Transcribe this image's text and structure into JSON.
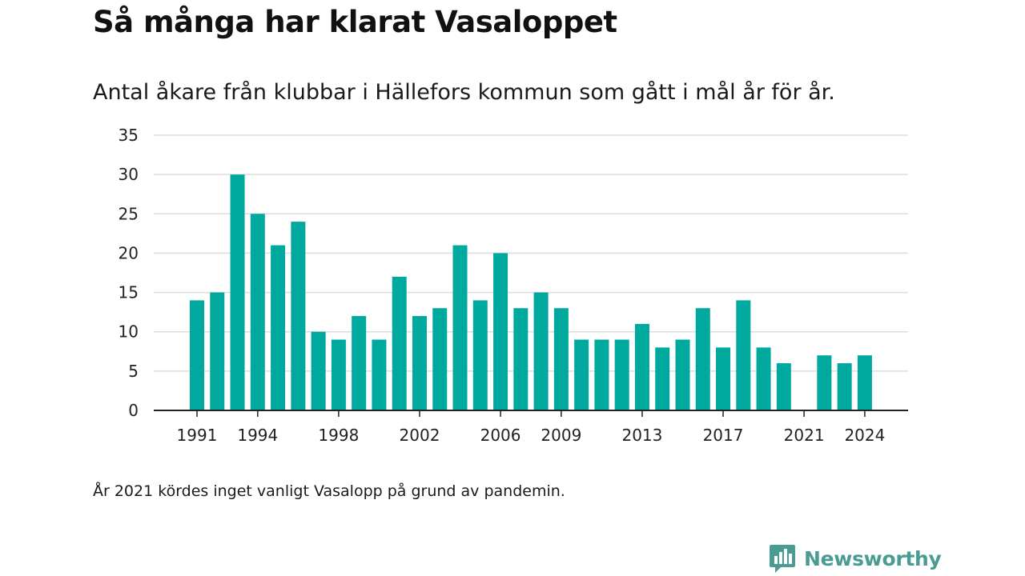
{
  "header": {
    "title": "Så många har klarat Vasaloppet",
    "subtitle": "Antal åkare från klubbar i Hällefors kommun som gått i mål år för år."
  },
  "footer": {
    "note": "År 2021 kördes inget vanligt Vasalopp på grund av pandemin.",
    "brand": "Newsworthy"
  },
  "colors": {
    "bar": "#00a99d",
    "grid": "#dddddd",
    "axis": "#222222",
    "brand": "#4a9b93"
  },
  "chart_data": {
    "type": "bar",
    "title": "Så många har klarat Vasaloppet",
    "subtitle": "Antal åkare från klubbar i Hällefors kommun som gått i mål år för år.",
    "xlabel": "",
    "ylabel": "",
    "x": [
      1991,
      1992,
      1993,
      1994,
      1995,
      1996,
      1997,
      1998,
      1999,
      2000,
      2001,
      2002,
      2003,
      2004,
      2005,
      2006,
      2007,
      2008,
      2009,
      2010,
      2011,
      2012,
      2013,
      2014,
      2015,
      2016,
      2017,
      2018,
      2019,
      2020,
      2021,
      2022,
      2023,
      2024
    ],
    "values": [
      14,
      15,
      30,
      25,
      21,
      24,
      10,
      9,
      12,
      9,
      17,
      12,
      13,
      21,
      14,
      20,
      13,
      15,
      13,
      9,
      9,
      9,
      11,
      8,
      9,
      13,
      8,
      14,
      8,
      6,
      0,
      7,
      6,
      7
    ],
    "x_ticks": [
      1991,
      1994,
      1998,
      2002,
      2006,
      2009,
      2013,
      2017,
      2021,
      2024
    ],
    "y_ticks": [
      0,
      5,
      10,
      15,
      20,
      25,
      30,
      35
    ],
    "ylim": [
      0,
      35
    ],
    "grid": true,
    "legend": "none"
  }
}
